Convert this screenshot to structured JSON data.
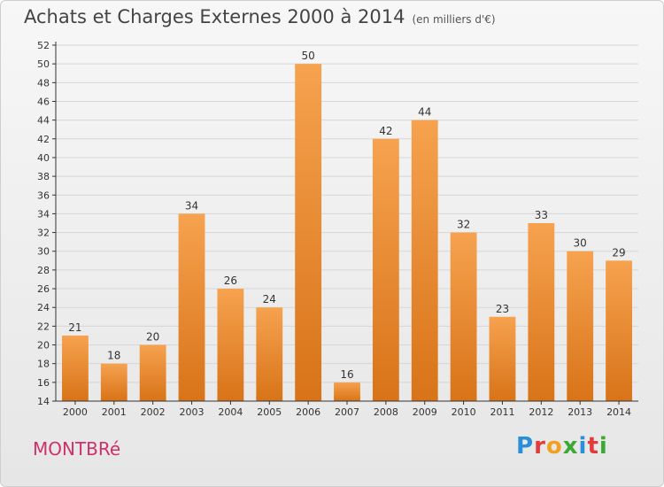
{
  "header": {
    "title": "Achats et Charges Externes 2000 à 2014",
    "unit": "(en milliers d'€)"
  },
  "footer": {
    "commune": "MONTBRé",
    "logo_letters": [
      "P",
      "r",
      "o",
      "x",
      "i",
      "t",
      "i"
    ],
    "logo_colors": [
      "#2a8fd6",
      "#e23b3b",
      "#f2a020",
      "#3aaa35",
      "#2a8fd6",
      "#e23b3b",
      "#3aaa35"
    ]
  },
  "colors": {
    "bar_light": "#f6a24f",
    "bar_dark": "#d87318",
    "grid": "#d6d6d6",
    "axis": "#333333",
    "commune": "#d0306a"
  },
  "chart_data": {
    "type": "bar",
    "title": "Achats et Charges Externes 2000 à 2014",
    "subtitle": "(en milliers d'€)",
    "xlabel": "",
    "ylabel": "",
    "categories": [
      "2000",
      "2001",
      "2002",
      "2003",
      "2004",
      "2005",
      "2006",
      "2007",
      "2008",
      "2009",
      "2010",
      "2011",
      "2012",
      "2013",
      "2014"
    ],
    "values": [
      21,
      18,
      20,
      34,
      26,
      24,
      50,
      16,
      42,
      44,
      32,
      23,
      33,
      30,
      29
    ],
    "ylim": [
      14,
      52
    ],
    "yticks": [
      14,
      16,
      18,
      20,
      22,
      24,
      26,
      28,
      30,
      32,
      34,
      36,
      38,
      40,
      42,
      44,
      46,
      48,
      50,
      52
    ],
    "grid": true,
    "legend": "none"
  }
}
